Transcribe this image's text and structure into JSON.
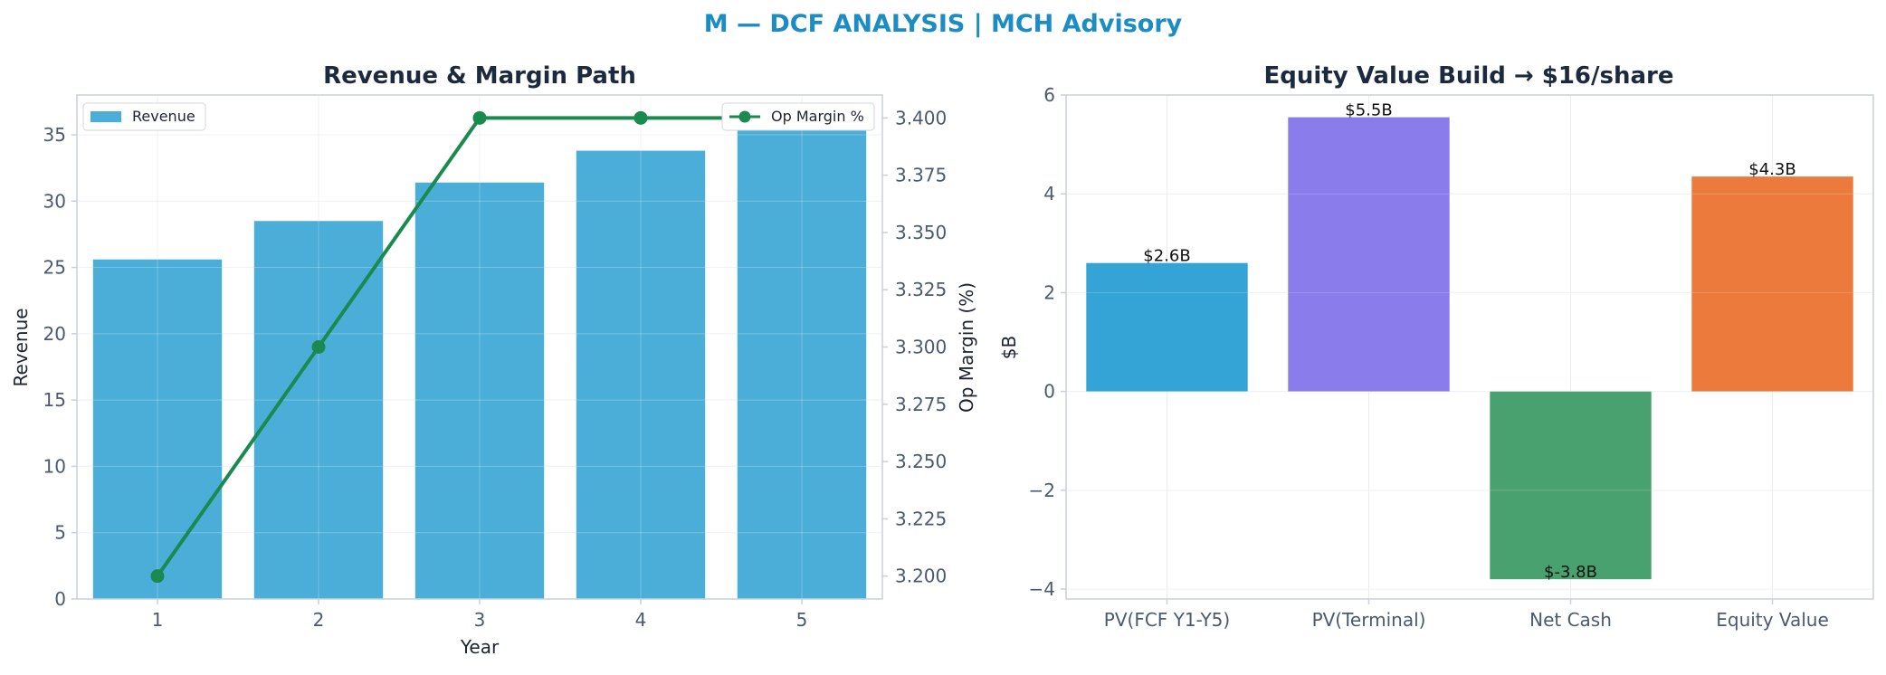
{
  "page": {
    "title": "M — DCF ANALYSIS | MCH Advisory"
  },
  "chart_data": [
    {
      "type": "bar",
      "title": "Revenue & Margin Path",
      "xlabel": "Year",
      "ylabel": "Revenue",
      "y2label": "Op Margin (%)",
      "categories": [
        "1",
        "2",
        "3",
        "4",
        "5"
      ],
      "ylim": [
        0,
        38
      ],
      "yticks": [
        0,
        5,
        10,
        15,
        20,
        25,
        30,
        35
      ],
      "y2lim": [
        3.19,
        3.41
      ],
      "y2ticks": [
        3.2,
        3.225,
        3.25,
        3.275,
        3.3,
        3.325,
        3.35,
        3.375,
        3.4
      ],
      "grid": true,
      "series": [
        {
          "name": "Revenue",
          "type": "bar",
          "axis": "left",
          "color": "#4aaed9",
          "legend": "top-left",
          "values": [
            25.6,
            28.5,
            31.4,
            33.8,
            36.2
          ]
        },
        {
          "name": "Op Margin %",
          "type": "line",
          "axis": "right",
          "color": "#1a8a4e",
          "legend": "top-right",
          "values": [
            3.2,
            3.3,
            3.4,
            3.4,
            3.4
          ]
        }
      ]
    },
    {
      "type": "bar",
      "title": "Equity Value Build → $16/share",
      "ylabel": "$B",
      "categories": [
        "PV(FCF Y1-Y5)",
        "PV(Terminal)",
        "Net Cash",
        "Equity Value"
      ],
      "values": [
        2.6,
        5.55,
        -3.8,
        4.35
      ],
      "value_labels": [
        "$2.6B",
        "$5.5B",
        "$-3.8B",
        "$4.3B"
      ],
      "colors": [
        "#34a3d5",
        "#8a7ceb",
        "#48a16e",
        "#ec7a3d"
      ],
      "ylim": [
        -4.2,
        6
      ],
      "yticks": [
        -4,
        -2,
        0,
        2,
        4,
        6
      ],
      "ytick_labels": [
        "−4",
        "−2",
        "0",
        "2",
        "4",
        "6"
      ],
      "grid": true
    }
  ]
}
